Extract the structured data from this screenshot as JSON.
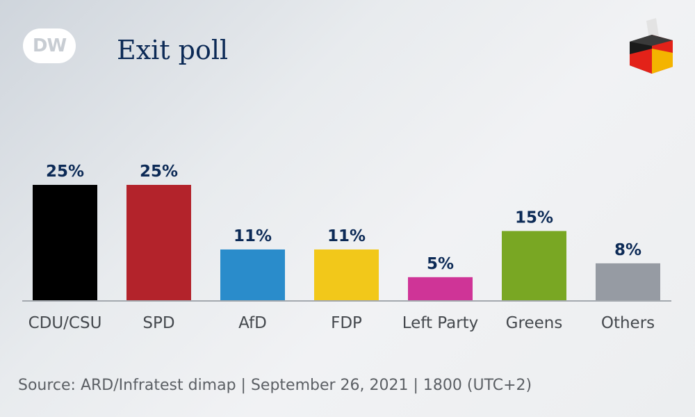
{
  "header": {
    "logo_text": "DW",
    "title": "Exit poll"
  },
  "chart_data": {
    "type": "bar",
    "categories": [
      "CDU/CSU",
      "SPD",
      "AfD",
      "FDP",
      "Left Party",
      "Greens",
      "Others"
    ],
    "values": [
      25,
      25,
      11,
      11,
      5,
      15,
      8
    ],
    "value_labels": [
      "25%",
      "25%",
      "11%",
      "11%",
      "5%",
      "15%",
      "8%"
    ],
    "colors": [
      "#000000",
      "#b3232b",
      "#2a8ccb",
      "#f2c81a",
      "#cf3497",
      "#79a723",
      "#969ba3"
    ],
    "title": "Exit poll",
    "xlabel": "",
    "ylabel": "",
    "ylim": [
      0,
      25
    ],
    "unit": "%",
    "grid": false,
    "legend": "none"
  },
  "footer": {
    "source": "Source: ARD/Infratest dimap | September 26, 2021 | 1800 (UTC+2)"
  }
}
